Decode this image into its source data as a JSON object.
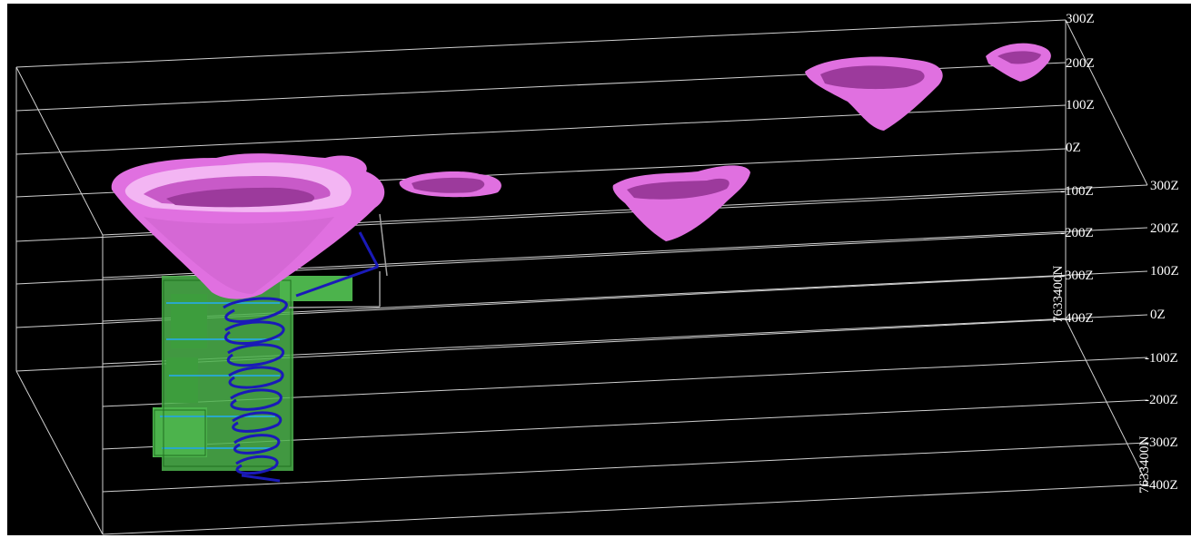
{
  "viewer": {
    "background": "#000000",
    "colors": {
      "grid": "#d0d0d0",
      "pit": "#e070e0",
      "pit_dark": "#9c3a9c",
      "pit_light": "#f3b5f3",
      "underground": "#4cb34c",
      "underground_accent": "#2aa8c8",
      "decline": "#1a1ab8"
    },
    "right_labels": [
      "300Z",
      "200Z",
      "100Z",
      "0Z",
      "-100Z",
      "-200Z",
      "-300Z",
      "-400Z"
    ],
    "back_labels": [
      "300Z",
      "200Z",
      "100Z",
      "0Z",
      "-100Z",
      "-200Z",
      "-300Z",
      "-400Z"
    ],
    "northing_front": "7633400N",
    "northing_back": "7633400N"
  }
}
